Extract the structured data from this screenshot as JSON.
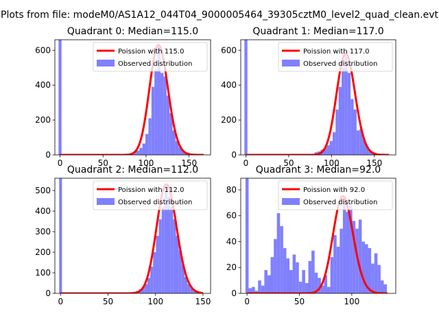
{
  "figure": {
    "suptitle": "Plots from file: modeM0/AS1A12_044T04_9000005464_39305cztM0_level2_quad_clean.evt"
  },
  "colors": {
    "histogram": "#8080ff",
    "poisson": "#ff0000",
    "axes": "#000000"
  },
  "chart_data": [
    {
      "type": "bar",
      "title": "Quadrant 0: Median=115.0",
      "xlim": [
        -6,
        175
      ],
      "ylim": [
        0,
        660
      ],
      "xticks": [
        0,
        50,
        100,
        150
      ],
      "yticks": [
        0,
        200,
        400,
        600
      ],
      "bin_width": 3.5,
      "hist_x": [
        0,
        87,
        90.5,
        94,
        97.5,
        101,
        104.5,
        108,
        111.5,
        115,
        118.5,
        122,
        125.5,
        129,
        132.5,
        136,
        139.5,
        143,
        146.5,
        150
      ],
      "hist_y": [
        660,
        18,
        25,
        40,
        65,
        120,
        210,
        390,
        490,
        630,
        470,
        450,
        340,
        240,
        140,
        80,
        45,
        25,
        10,
        5
      ],
      "poisson_mean": 115.0,
      "legend": [
        "Poission with 115.0",
        "Observed distribution"
      ]
    },
    {
      "type": "bar",
      "title": "Quadrant 1: Median=117.0",
      "xlim": [
        -6,
        175
      ],
      "ylim": [
        0,
        660
      ],
      "xticks": [
        0,
        50,
        100,
        150
      ],
      "yticks": [
        0,
        200,
        400,
        600
      ],
      "bin_width": 3.5,
      "hist_x": [
        0,
        82,
        85.5,
        89,
        92.5,
        96,
        99.5,
        103,
        106.5,
        110,
        113.5,
        117,
        120.5,
        124,
        127.5,
        131,
        134.5,
        138,
        141.5,
        145,
        148.5,
        152,
        155.5
      ],
      "hist_y": [
        660,
        15,
        20,
        30,
        40,
        55,
        80,
        130,
        260,
        390,
        500,
        580,
        470,
        320,
        260,
        140,
        150,
        90,
        50,
        25,
        10,
        5,
        3
      ],
      "poisson_mean": 117.0,
      "legend": [
        "Poission with 117.0",
        "Observed distribution"
      ]
    },
    {
      "type": "bar",
      "title": "Quadrant 2: Median=112.0",
      "xlim": [
        -6,
        158
      ],
      "ylim": [
        0,
        560
      ],
      "xticks": [
        0,
        50,
        100,
        150
      ],
      "yticks": [
        0,
        100,
        200,
        300,
        400,
        500
      ],
      "bin_width": 3,
      "hist_x": [
        0,
        75,
        78,
        81,
        84,
        87,
        90,
        93,
        96,
        99,
        102,
        105,
        108,
        111,
        114,
        117,
        120,
        123,
        126,
        129,
        132,
        135,
        138,
        141,
        144,
        147
      ],
      "hist_y": [
        560,
        5,
        8,
        12,
        20,
        30,
        45,
        75,
        130,
        200,
        280,
        360,
        420,
        530,
        470,
        420,
        360,
        280,
        210,
        140,
        80,
        45,
        25,
        12,
        6,
        3
      ],
      "poisson_mean": 112.0,
      "legend": [
        "Poission with 112.0",
        "Observed distribution"
      ]
    },
    {
      "type": "bar",
      "title": "Quadrant 3: Median=92.0",
      "xlim": [
        -6,
        142
      ],
      "ylim": [
        0,
        89
      ],
      "xticks": [
        0,
        50,
        100
      ],
      "yticks": [
        0,
        20,
        40,
        60,
        80
      ],
      "bin_width": 3,
      "hist_x": [
        0,
        3,
        6,
        9,
        12,
        15,
        18,
        21,
        24,
        27,
        30,
        33,
        36,
        39,
        42,
        45,
        48,
        51,
        54,
        57,
        60,
        63,
        66,
        69,
        72,
        75,
        78,
        81,
        84,
        87,
        90,
        93,
        96,
        99,
        102,
        105,
        108,
        111,
        114,
        117,
        120,
        123,
        126,
        129,
        132
      ],
      "hist_y": [
        89,
        4,
        5,
        2,
        10,
        6,
        18,
        14,
        28,
        42,
        62,
        52,
        35,
        27,
        18,
        30,
        24,
        9,
        18,
        8,
        25,
        33,
        16,
        12,
        6,
        14,
        5,
        28,
        45,
        36,
        50,
        75,
        63,
        68,
        56,
        50,
        57,
        40,
        38,
        35,
        23,
        31,
        22,
        10,
        7
      ],
      "poisson_mean": 92.0,
      "legend": [
        "Poission with 92.0",
        "Observed distribution"
      ]
    }
  ]
}
